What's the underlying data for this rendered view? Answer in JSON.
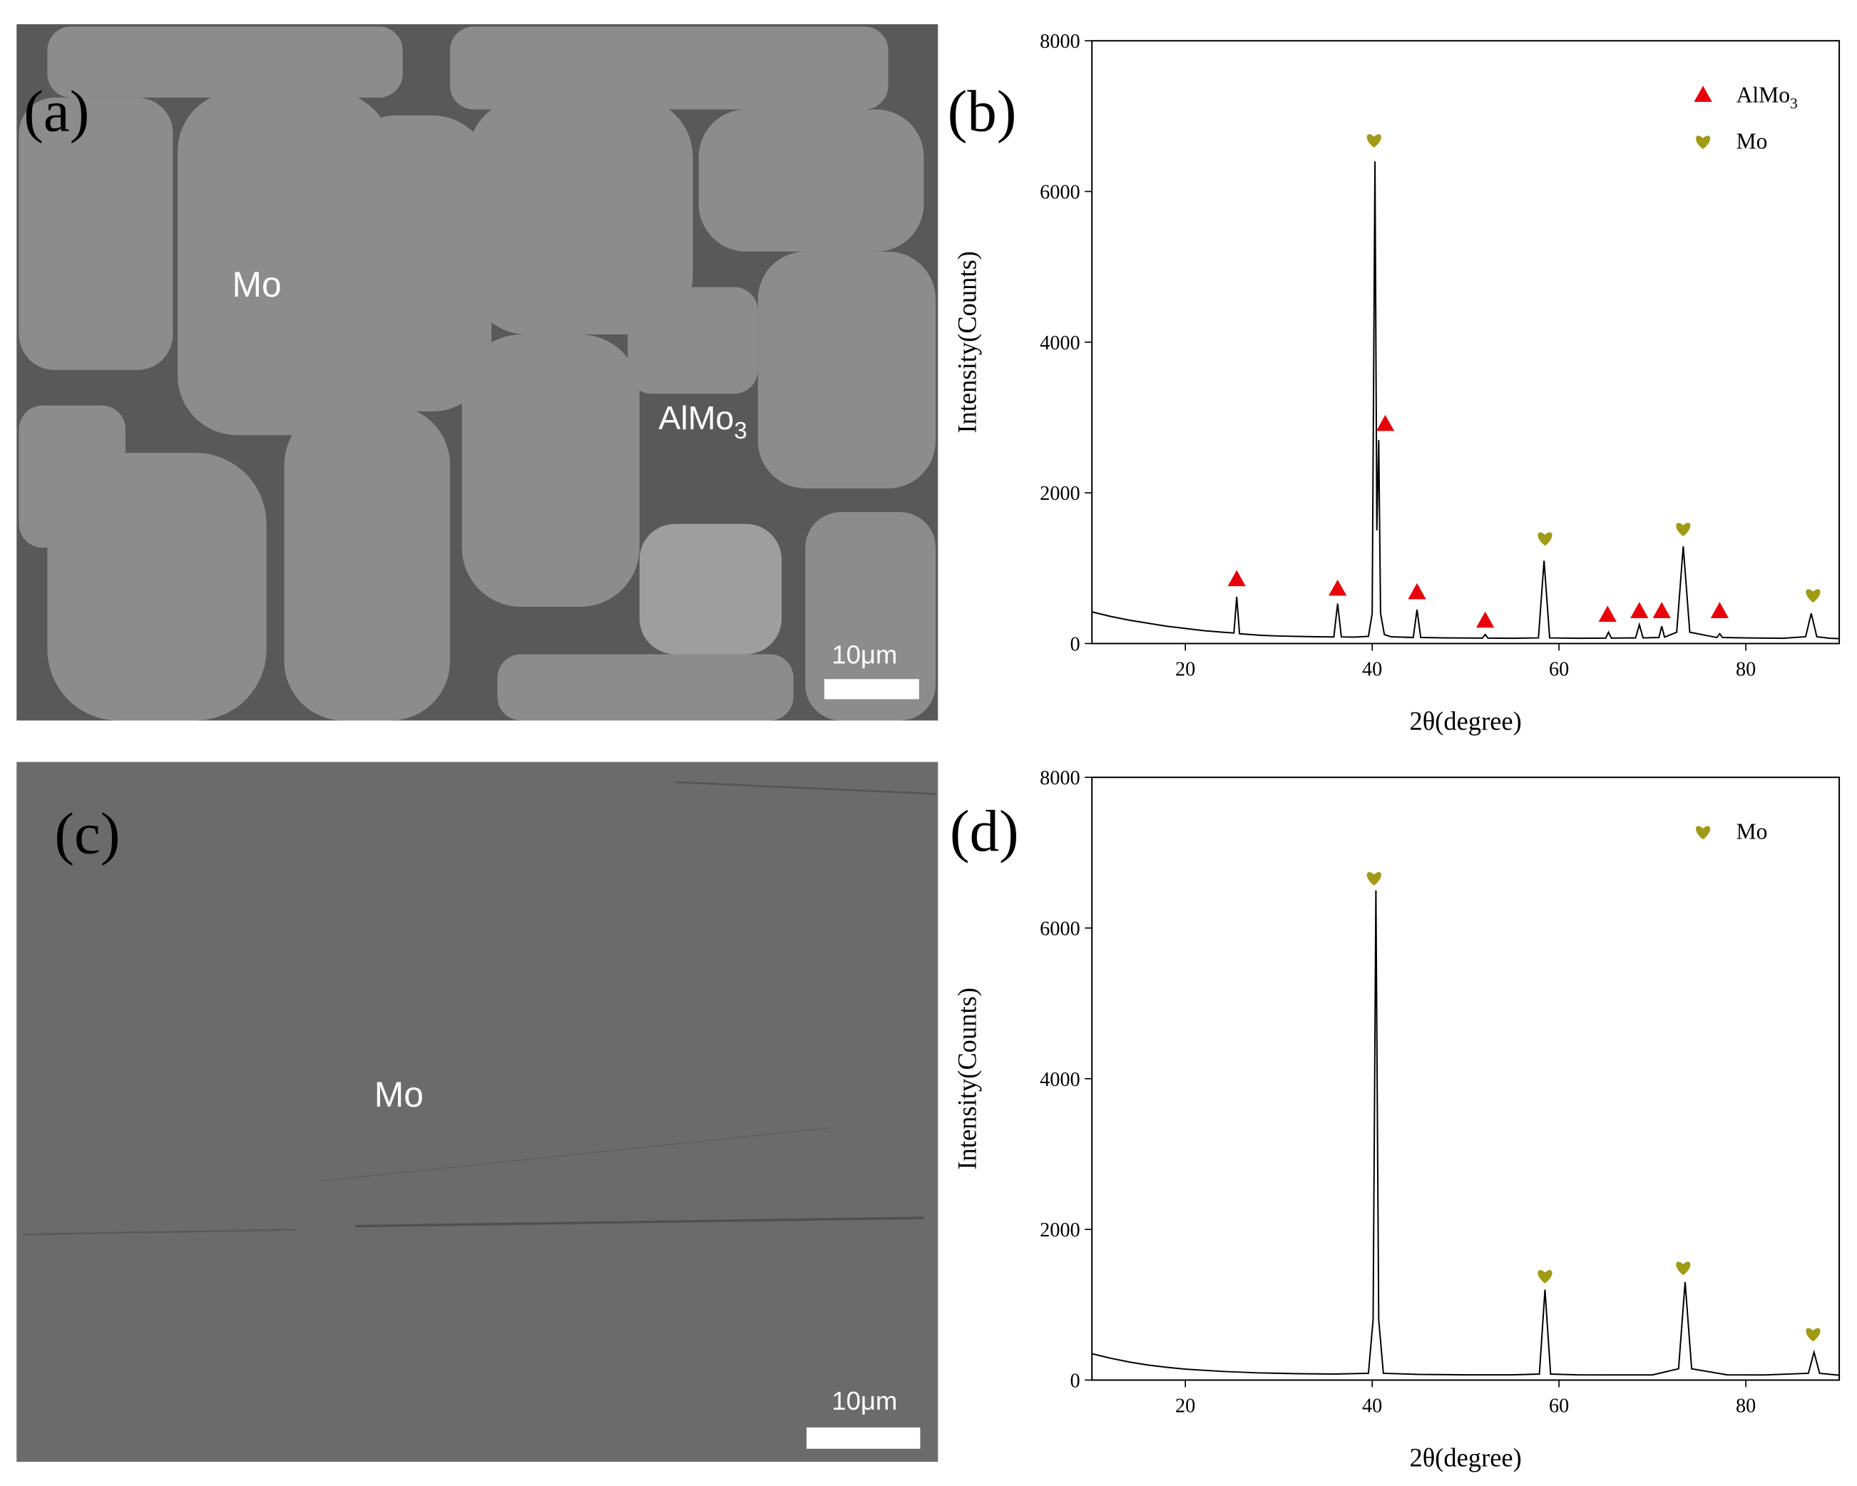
{
  "images": [
    {
      "panel_label": "(a)",
      "annotations": [
        {
          "text": "Mo"
        },
        {
          "text": "AlMo",
          "subscript": "3"
        }
      ],
      "scale_bar": "10μm"
    },
    {
      "panel_label": "(c)",
      "annotations": [
        {
          "text": "Mo"
        }
      ],
      "scale_bar": "10μm"
    }
  ],
  "chart_data": [
    {
      "type": "line",
      "panel_label": "(b)",
      "x_label": "2θ(degree)",
      "y_label": "Intensity(Counts)",
      "xlim": [
        10,
        90
      ],
      "ylim": [
        0,
        8000
      ],
      "xticks": [
        20,
        40,
        60,
        80
      ],
      "yticks": [
        0,
        2000,
        4000,
        6000,
        8000
      ],
      "color": "#000000",
      "legend": "upper right",
      "x": [
        10,
        12,
        14,
        16,
        18,
        20,
        22,
        24,
        25.2,
        25.5,
        25.8,
        28,
        30,
        32,
        34,
        35.9,
        36.3,
        36.7,
        38,
        39.6,
        40.0,
        40.3,
        40.5,
        40.7,
        40.9,
        41.3,
        42,
        44.4,
        44.8,
        45.2,
        48,
        51.8,
        52.1,
        52.4,
        55,
        57.8,
        58.4,
        59.0,
        62,
        65.0,
        65.3,
        65.6,
        68.2,
        68.6,
        69.0,
        70.7,
        71.0,
        71.3,
        72.6,
        73.3,
        74.0,
        76.9,
        77.2,
        77.5,
        80,
        84,
        86.4,
        87.0,
        87.6,
        89,
        90
      ],
      "values": [
        420,
        360,
        310,
        270,
        230,
        200,
        170,
        150,
        140,
        620,
        130,
        110,
        100,
        95,
        90,
        88,
        530,
        88,
        85,
        95,
        400,
        6400,
        1500,
        2700,
        400,
        120,
        90,
        80,
        450,
        80,
        75,
        72,
        120,
        72,
        70,
        75,
        1100,
        75,
        70,
        72,
        150,
        72,
        75,
        250,
        75,
        80,
        230,
        85,
        150,
        1290,
        150,
        80,
        130,
        80,
        75,
        70,
        90,
        400,
        90,
        70,
        65
      ],
      "markers": [
        {
          "name": "AlMo",
          "name_sub": "3",
          "shape": "triangle",
          "color": "#e8000b",
          "x": [
            25.5,
            36.3,
            41.4,
            44.8,
            52.1,
            65.2,
            68.6,
            71.0,
            77.2
          ],
          "values": [
            849,
            723,
            2909,
            676,
            299,
            377,
            425,
            425,
            425
          ]
        },
        {
          "name": "Mo",
          "shape": "heart",
          "color": "#a09a14",
          "x": [
            40.2,
            58.5,
            73.3,
            87.2
          ],
          "values": [
            6683,
            1399,
            1525,
            645
          ]
        }
      ]
    },
    {
      "type": "line",
      "panel_label": "(d)",
      "x_label": "2θ(degree)",
      "y_label": "Intensity(Counts)",
      "xlim": [
        10,
        90
      ],
      "ylim": [
        0,
        8000
      ],
      "xticks": [
        20,
        40,
        60,
        80
      ],
      "yticks": [
        0,
        2000,
        4000,
        6000,
        8000
      ],
      "color": "#000000",
      "legend": "upper right",
      "x": [
        10,
        12,
        14,
        16,
        18,
        20,
        24,
        28,
        32,
        36,
        39.6,
        40.1,
        40.4,
        40.7,
        41.2,
        45,
        50,
        55,
        57.9,
        58.5,
        59.1,
        62,
        66,
        70,
        72.8,
        73.5,
        74.2,
        78,
        82,
        86.7,
        87.3,
        87.9,
        90
      ],
      "values": [
        350,
        290,
        240,
        200,
        170,
        145,
        115,
        95,
        85,
        80,
        90,
        800,
        6500,
        800,
        90,
        75,
        70,
        70,
        80,
        1200,
        80,
        70,
        68,
        68,
        150,
        1300,
        150,
        70,
        68,
        90,
        370,
        90,
        65
      ],
      "markers": [
        {
          "name": "Mo",
          "shape": "heart",
          "color": "#a09a14",
          "x": [
            40.2,
            58.5,
            73.3,
            87.2
          ],
          "values": [
            6666,
            1384,
            1494,
            613
          ]
        }
      ]
    }
  ]
}
